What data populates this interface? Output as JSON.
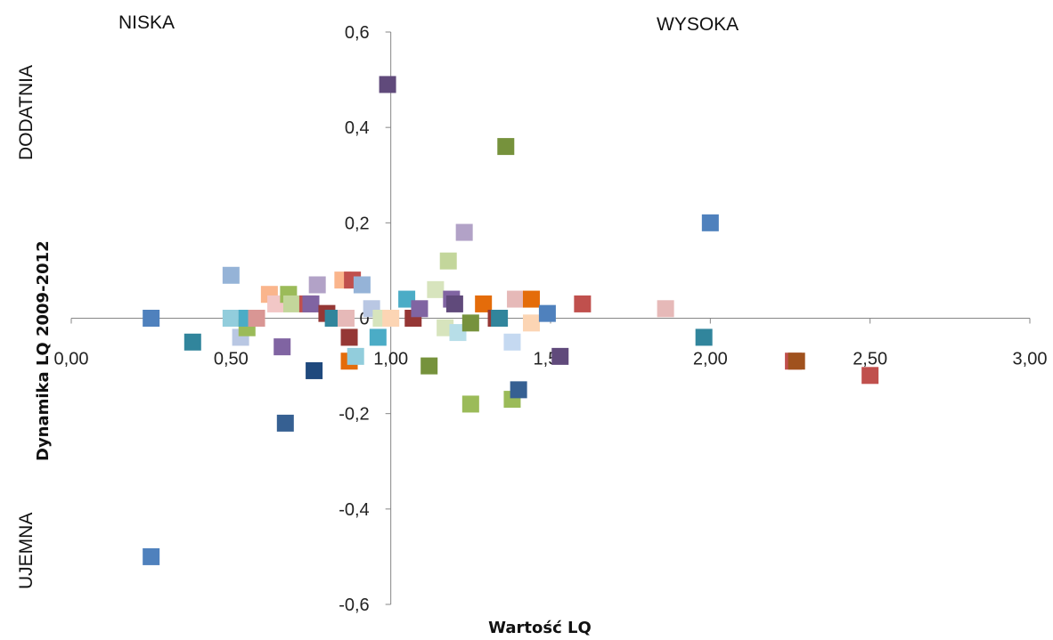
{
  "quadrant_labels": {
    "top_left": "NISKA",
    "top_right": "WYSOKA",
    "left_top": "DODATNIA",
    "left_bottom": "UJEMNA"
  },
  "chart_data": {
    "type": "scatter",
    "title": "",
    "xlabel": "Wartość LQ",
    "ylabel": "Dynamika LQ 2009-2012",
    "xlim": [
      0,
      3
    ],
    "ylim": [
      -0.6,
      0.6
    ],
    "x_origin_at": 1.0,
    "y_origin_at": 0,
    "x_ticks": [
      0,
      0.5,
      1.0,
      1.5,
      2.0,
      2.5,
      3.0
    ],
    "x_tick_labels": [
      "0,00",
      "0,50",
      "1,00",
      "1,50",
      "2,00",
      "2,50",
      "3,00"
    ],
    "y_ticks": [
      -0.6,
      -0.4,
      -0.2,
      0,
      0.2,
      0.4,
      0.6
    ],
    "y_tick_labels": [
      "-0,6",
      "-0,4",
      "-0,2",
      "0",
      "0,2",
      "0,4",
      "0,6"
    ],
    "grid": false,
    "legend": "none",
    "marker": "square",
    "points": [
      {
        "x": 0.25,
        "y": 0.0,
        "color": "#4f81bd"
      },
      {
        "x": 0.25,
        "y": -0.5,
        "color": "#4f81bd"
      },
      {
        "x": 0.38,
        "y": -0.05,
        "color": "#31859c"
      },
      {
        "x": 0.5,
        "y": 0.09,
        "color": "#95b3d7"
      },
      {
        "x": 0.5,
        "y": 0.0,
        "color": "#92cddc"
      },
      {
        "x": 0.53,
        "y": -0.04,
        "color": "#b9c7e3"
      },
      {
        "x": 0.55,
        "y": -0.02,
        "color": "#9bbb59"
      },
      {
        "x": 0.55,
        "y": 0.0,
        "color": "#4bacc6"
      },
      {
        "x": 0.58,
        "y": 0.0,
        "color": "#d99694"
      },
      {
        "x": 0.62,
        "y": 0.05,
        "color": "#fab58c"
      },
      {
        "x": 0.64,
        "y": 0.03,
        "color": "#f2c7c6"
      },
      {
        "x": 0.66,
        "y": -0.06,
        "color": "#8064a2"
      },
      {
        "x": 0.67,
        "y": -0.22,
        "color": "#366092"
      },
      {
        "x": 0.68,
        "y": 0.05,
        "color": "#9bbb59"
      },
      {
        "x": 0.69,
        "y": 0.03,
        "color": "#c3d69b"
      },
      {
        "x": 0.74,
        "y": 0.03,
        "color": "#c0504d"
      },
      {
        "x": 0.75,
        "y": 0.03,
        "color": "#8064a2"
      },
      {
        "x": 0.76,
        "y": -0.11,
        "color": "#1f497d"
      },
      {
        "x": 0.77,
        "y": 0.07,
        "color": "#b2a2c7"
      },
      {
        "x": 0.8,
        "y": 0.01,
        "color": "#953735"
      },
      {
        "x": 0.82,
        "y": 0.0,
        "color": "#31859c"
      },
      {
        "x": 0.85,
        "y": 0.08,
        "color": "#fab58c"
      },
      {
        "x": 0.86,
        "y": 0.0,
        "color": "#e6b9b8"
      },
      {
        "x": 0.87,
        "y": -0.09,
        "color": "#e46c0a"
      },
      {
        "x": 0.87,
        "y": -0.04,
        "color": "#953735"
      },
      {
        "x": 0.88,
        "y": 0.08,
        "color": "#c0504d"
      },
      {
        "x": 0.89,
        "y": -0.08,
        "color": "#92cddc"
      },
      {
        "x": 0.91,
        "y": 0.07,
        "color": "#95b3d7"
      },
      {
        "x": 0.94,
        "y": 0.02,
        "color": "#b9c7e3"
      },
      {
        "x": 0.96,
        "y": -0.04,
        "color": "#4bacc6"
      },
      {
        "x": 0.97,
        "y": 0.0,
        "color": "#d7e4bd"
      },
      {
        "x": 0.99,
        "y": 0.49,
        "color": "#604a7b"
      },
      {
        "x": 1.0,
        "y": 0.0,
        "color": "#fcd5b4"
      },
      {
        "x": 1.05,
        "y": 0.04,
        "color": "#4bacc6"
      },
      {
        "x": 1.07,
        "y": 0.0,
        "color": "#953735"
      },
      {
        "x": 1.09,
        "y": 0.02,
        "color": "#8064a2"
      },
      {
        "x": 1.12,
        "y": -0.1,
        "color": "#76923c"
      },
      {
        "x": 1.14,
        "y": 0.06,
        "color": "#d7e4bd"
      },
      {
        "x": 1.17,
        "y": -0.02,
        "color": "#d7e4bd"
      },
      {
        "x": 1.18,
        "y": 0.12,
        "color": "#c3d69b"
      },
      {
        "x": 1.19,
        "y": 0.04,
        "color": "#8064a2"
      },
      {
        "x": 1.2,
        "y": 0.03,
        "color": "#604a7b"
      },
      {
        "x": 1.21,
        "y": -0.03,
        "color": "#b7dee8"
      },
      {
        "x": 1.23,
        "y": 0.18,
        "color": "#b2a2c7"
      },
      {
        "x": 1.25,
        "y": -0.18,
        "color": "#9bbb59"
      },
      {
        "x": 1.25,
        "y": -0.01,
        "color": "#76923c"
      },
      {
        "x": 1.29,
        "y": 0.03,
        "color": "#e46c0a"
      },
      {
        "x": 1.33,
        "y": 0.0,
        "color": "#953735"
      },
      {
        "x": 1.34,
        "y": 0.0,
        "color": "#31859c"
      },
      {
        "x": 1.36,
        "y": 0.36,
        "color": "#76923c"
      },
      {
        "x": 1.38,
        "y": -0.17,
        "color": "#9bbb59"
      },
      {
        "x": 1.38,
        "y": -0.05,
        "color": "#c5d9f1"
      },
      {
        "x": 1.39,
        "y": 0.04,
        "color": "#e6b9b8"
      },
      {
        "x": 1.4,
        "y": -0.15,
        "color": "#366092"
      },
      {
        "x": 1.44,
        "y": 0.04,
        "color": "#e46c0a"
      },
      {
        "x": 1.44,
        "y": -0.01,
        "color": "#fcd5b4"
      },
      {
        "x": 1.49,
        "y": 0.01,
        "color": "#4f81bd"
      },
      {
        "x": 1.53,
        "y": -0.08,
        "color": "#604a7b"
      },
      {
        "x": 1.6,
        "y": 0.03,
        "color": "#c0504d"
      },
      {
        "x": 1.86,
        "y": 0.02,
        "color": "#e6b9b8"
      },
      {
        "x": 1.98,
        "y": -0.04,
        "color": "#31859c"
      },
      {
        "x": 2.0,
        "y": 0.2,
        "color": "#4f81bd"
      },
      {
        "x": 2.26,
        "y": -0.09,
        "color": "#c0504d"
      },
      {
        "x": 2.27,
        "y": -0.09,
        "color": "#a0521e"
      },
      {
        "x": 2.5,
        "y": -0.12,
        "color": "#c0504d"
      }
    ]
  }
}
